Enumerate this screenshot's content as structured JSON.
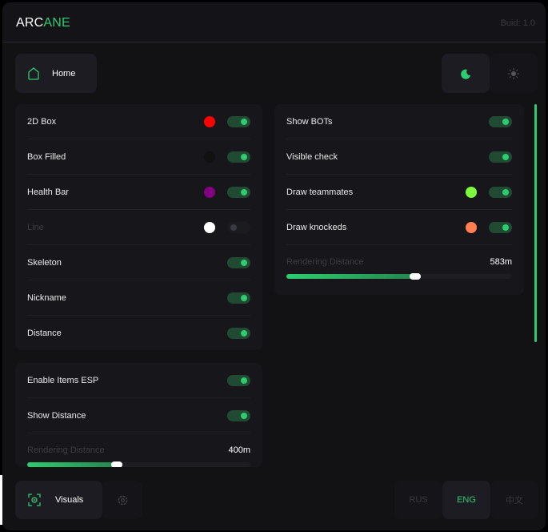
{
  "header": {
    "logo_a": "ARC",
    "logo_b": "ANE",
    "build": "Buid: 1.0"
  },
  "nav": {
    "home": "Home",
    "theme_dark_icon": "moon-icon",
    "theme_light_icon": "sun-icon"
  },
  "player_esp": {
    "items": [
      {
        "label": "2D Box",
        "color": "#ff0000",
        "enabled": true
      },
      {
        "label": "Box Filled",
        "color": "#111111",
        "enabled": true
      },
      {
        "label": "Health Bar",
        "color": "#800080",
        "enabled": true
      },
      {
        "label": "Line",
        "color": "#ffffff",
        "enabled": false
      },
      {
        "label": "Skeleton",
        "enabled": true
      },
      {
        "label": "Nickname",
        "enabled": true
      },
      {
        "label": "Distance",
        "enabled": true
      }
    ]
  },
  "items_esp": {
    "items": [
      {
        "label": "Enable Items ESP",
        "enabled": true
      },
      {
        "label": "Show Distance",
        "enabled": true
      }
    ],
    "slider_label": "Rendering Distance",
    "slider_value": "400m",
    "slider_fraction": 0.4
  },
  "bots": {
    "items": [
      {
        "label": "Show BOTs",
        "enabled": true
      },
      {
        "label": "Visible check",
        "enabled": true
      },
      {
        "label": "Draw teammates",
        "color": "#7cfc3a",
        "enabled": true
      },
      {
        "label": "Draw knockeds",
        "color": "#ff7f50",
        "enabled": true
      }
    ],
    "slider_label": "Rendering Distance",
    "slider_value": "583m",
    "slider_fraction": 0.57
  },
  "footer": {
    "visuals": "Visuals",
    "languages": [
      "RUS",
      "ENG",
      "中文"
    ],
    "active_language": "ENG"
  },
  "colors": {
    "accent": "#2ecc71"
  }
}
